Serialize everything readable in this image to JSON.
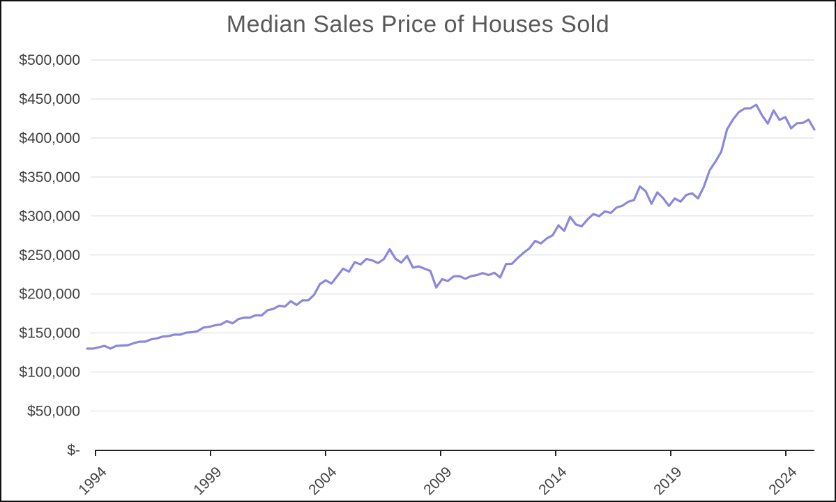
{
  "title": "Median Sales Price of Houses Sold",
  "chart_data": {
    "type": "line",
    "title": "Median Sales Price of Houses Sold",
    "series_name": "Median Sales Price of Houses Sold (USD)",
    "frequency": "quarterly",
    "start_period": "1994 Q1",
    "end_period": "2025 Q2",
    "values": [
      130000,
      130000,
      131750,
      133500,
      130000,
      133500,
      134000,
      134400,
      137000,
      139000,
      139000,
      141900,
      143200,
      145500,
      146000,
      148000,
      147900,
      150500,
      151000,
      152500,
      157000,
      158000,
      160000,
      161000,
      165300,
      162500,
      167800,
      169800,
      169800,
      172900,
      172600,
      179300,
      180900,
      185000,
      183900,
      190900,
      186000,
      191800,
      191900,
      198800,
      212700,
      217600,
      213500,
      223100,
      232500,
      228700,
      240900,
      237900,
      244950,
      243200,
      239700,
      244700,
      257400,
      245200,
      240300,
      248800,
      233900,
      235500,
      232400,
      229600,
      208400,
      219000,
      216700,
      222600,
      222900,
      219600,
      223000,
      224300,
      226900,
      224300,
      227200,
      221200,
      238400,
      238700,
      246200,
      252800,
      258400,
      268100,
      264800,
      271300,
      275200,
      288000,
      281000,
      298900,
      289200,
      286700,
      295500,
      302500,
      299800,
      306000,
      303800,
      310900,
      313100,
      318200,
      320500,
      337900,
      331800,
      315600,
      330300,
      322800,
      313000,
      322500,
      318400,
      327100,
      329000,
      322600,
      337500,
      358700,
      369800,
      382600,
      411200,
      423600,
      433100,
      437700,
      438000,
      442600,
      429000,
      418500,
      435400,
      423200,
      426800,
      412300,
      418900,
      419300,
      423500,
      410800
    ],
    "x_tick_labels": [
      "1994",
      "1999",
      "2004",
      "2009",
      "2014",
      "2019",
      "2024"
    ],
    "x_tick_every_n_points": 20,
    "y_tick_labels": [
      "$-",
      "$50,000",
      "$100,000",
      "$150,000",
      "$200,000",
      "$250,000",
      "$300,000",
      "$350,000",
      "$400,000",
      "$450,000",
      "$500,000"
    ],
    "ylim": [
      0,
      500000
    ],
    "y_tick_step": 50000,
    "grid": "horizontal",
    "legend": "none",
    "line_color": "#8a87de",
    "grid_color": "#d9d9d9",
    "axis_color": "#262626",
    "label_color": "#404040",
    "title_color": "#595959"
  }
}
